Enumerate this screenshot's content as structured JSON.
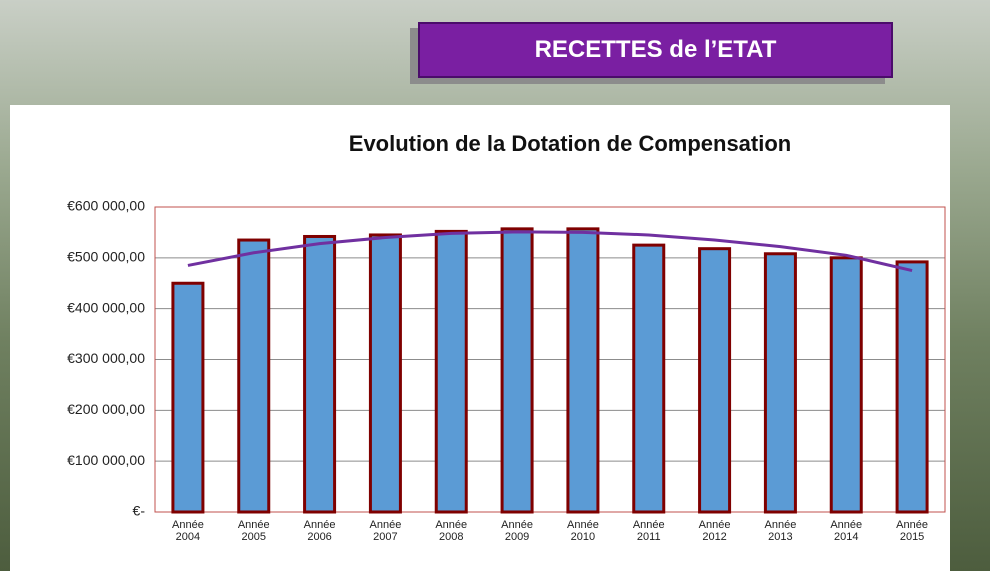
{
  "slide": {
    "banner": "RECETTES de l’ETAT"
  },
  "chart_data": {
    "type": "bar",
    "title": "Evolution de la Dotation de Compensation",
    "categories": [
      "Année 2004",
      "Année 2005",
      "Année 2006",
      "Année 2007",
      "Année 2008",
      "Année 2009",
      "Année 2010",
      "Année 2011",
      "Année 2012",
      "Année 2013",
      "Année 2014",
      "Année 2015"
    ],
    "values": [
      450000,
      535000,
      542000,
      545000,
      552000,
      557000,
      557000,
      525000,
      518000,
      508000,
      500000,
      492000
    ],
    "color": "#5b9bd5",
    "edge_color": "#7f0000",
    "trendline": {
      "color": "#7030a0",
      "values": [
        485000,
        510000,
        528000,
        540000,
        548000,
        551000,
        550000,
        545000,
        535000,
        522000,
        505000,
        475000
      ]
    },
    "ylim": [
      0,
      600000
    ],
    "yticks": [
      {
        "value": 0,
        "label": "€-"
      },
      {
        "value": 100000,
        "label": "€100 000,00"
      },
      {
        "value": 200000,
        "label": "€200 000,00"
      },
      {
        "value": 300000,
        "label": "€300 000,00"
      },
      {
        "value": 400000,
        "label": "€400 000,00"
      },
      {
        "value": 500000,
        "label": "€500 000,00"
      },
      {
        "value": 600000,
        "label": "€600 000,00"
      }
    ],
    "grid": true
  }
}
